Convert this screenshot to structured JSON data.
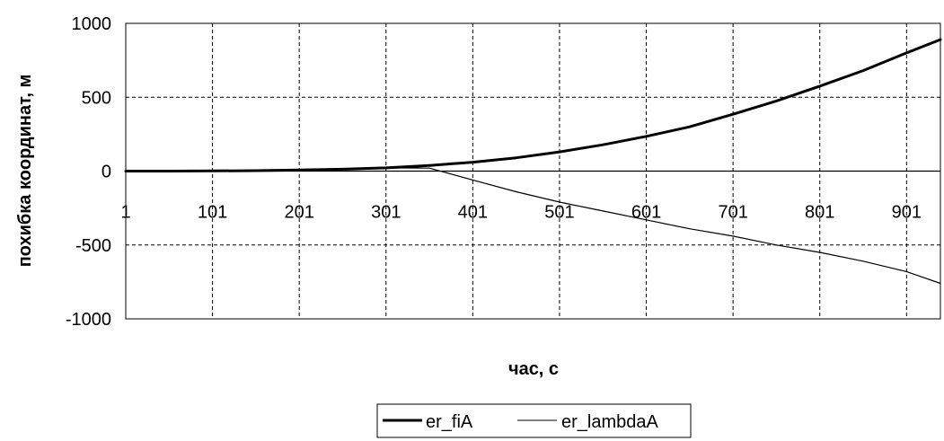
{
  "chart_data": {
    "type": "line",
    "xlabel": "час, с",
    "ylabel": "похибка координат, м",
    "xlim": [
      1,
      940
    ],
    "ylim": [
      -1000,
      1000
    ],
    "x_ticks": [
      "1",
      "101",
      "201",
      "301",
      "401",
      "501",
      "601",
      "701",
      "801",
      "901"
    ],
    "y_ticks": [
      "1000",
      "500",
      "0",
      "-500",
      "-1000"
    ],
    "grid": true,
    "legend_position": "bottom",
    "x": [
      1,
      51,
      101,
      151,
      201,
      251,
      301,
      351,
      401,
      451,
      501,
      551,
      601,
      651,
      701,
      751,
      801,
      851,
      901,
      940
    ],
    "series": [
      {
        "name": "er_fiA",
        "style": "thick",
        "values": [
          0,
          0,
          1,
          3,
          7,
          13,
          22,
          38,
          60,
          90,
          130,
          178,
          235,
          300,
          385,
          475,
          575,
          680,
          800,
          890
        ]
      },
      {
        "name": "er_lambdaA",
        "style": "thin",
        "values": [
          0,
          0,
          1,
          3,
          7,
          13,
          22,
          20,
          -60,
          -140,
          -210,
          -270,
          -330,
          -390,
          -440,
          -500,
          -550,
          -610,
          -680,
          -760
        ]
      }
    ]
  },
  "colors": {
    "line": "#000000",
    "grid": "#000000",
    "background": "#ffffff"
  }
}
